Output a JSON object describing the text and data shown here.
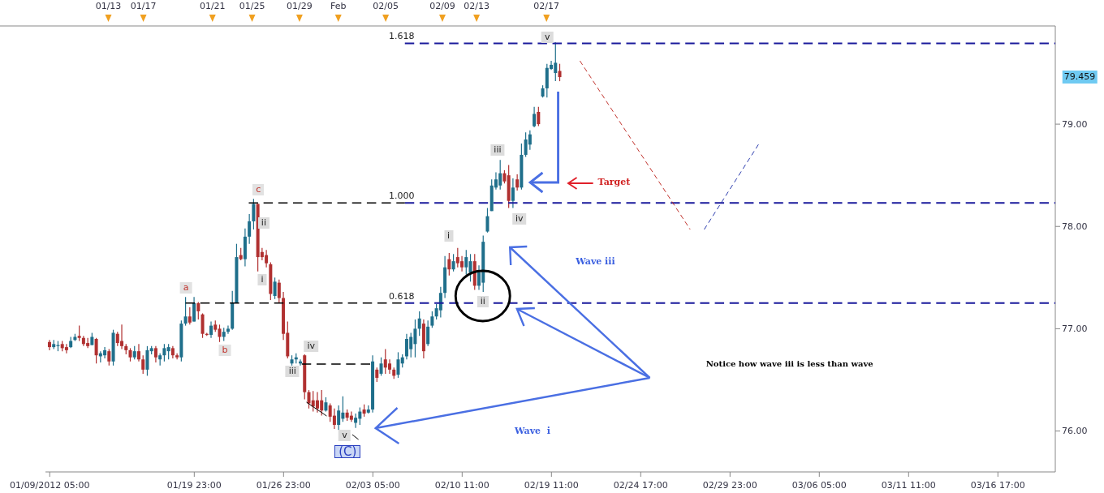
{
  "chart_data": {
    "type": "candlestick",
    "categories": [
      "01/09/2012 05:00",
      null,
      null,
      null,
      null,
      null,
      null,
      null,
      null,
      null,
      null,
      null,
      null,
      null,
      null,
      null,
      null,
      null,
      null,
      null,
      null,
      null,
      null,
      null,
      null,
      null,
      null,
      null,
      null,
      null,
      null,
      null,
      null,
      null,
      "01/19 23:00",
      null,
      null,
      null,
      null,
      null,
      null,
      null,
      null,
      null,
      null,
      null,
      null,
      null,
      null,
      null,
      null,
      null,
      null,
      null,
      null,
      "01/26 23:00",
      null,
      null,
      null,
      null,
      null,
      null,
      null,
      null,
      null,
      null,
      null,
      null,
      null,
      null,
      null,
      null,
      null,
      null,
      null,
      null,
      "02/03 05:00",
      null,
      null,
      null,
      null,
      null,
      null,
      null,
      null,
      null,
      null,
      null,
      null,
      null,
      null,
      null,
      null,
      null,
      null,
      null,
      null,
      "02/10 11:00",
      null,
      null,
      null,
      null,
      null,
      null,
      null,
      null,
      null,
      null,
      null,
      null,
      null,
      null,
      null,
      null,
      null,
      null,
      null,
      null,
      "02/19 11:00",
      null,
      null,
      null,
      null,
      null,
      null,
      null,
      null,
      null,
      null,
      null,
      null,
      null,
      null,
      null,
      null,
      null,
      null,
      null,
      null,
      "02/24 17:00",
      null,
      null,
      null,
      null,
      null,
      null,
      null,
      null,
      null,
      null,
      null,
      null,
      null,
      null,
      null,
      null,
      null,
      null,
      null,
      null,
      "02/29 23:00",
      null,
      null,
      null,
      null,
      null,
      null,
      null,
      null,
      null,
      null,
      null,
      null,
      null,
      null,
      null,
      null,
      null,
      null,
      null,
      null,
      "03/06 05:00",
      null,
      null,
      null,
      null,
      null,
      null,
      null,
      null,
      null,
      null,
      null,
      null,
      null,
      null,
      null,
      null,
      null,
      null,
      null,
      null,
      "03/11 11:00",
      null,
      null,
      null,
      null,
      null,
      null,
      null,
      null,
      null,
      null,
      null,
      null,
      null,
      null,
      null,
      null,
      null,
      null,
      null,
      null,
      "03/16 17:00",
      null,
      null,
      null,
      null,
      null,
      null,
      null,
      null,
      null,
      null,
      null,
      null,
      null
    ],
    "ohlc": [
      [
        76.87,
        76.89,
        76.79,
        76.82
      ],
      [
        76.82,
        76.89,
        76.8,
        76.85
      ],
      [
        76.83,
        76.88,
        76.78,
        76.84
      ],
      [
        76.85,
        76.88,
        76.78,
        76.81
      ],
      [
        76.82,
        76.85,
        76.76,
        76.79
      ],
      [
        76.82,
        76.92,
        76.81,
        76.88
      ],
      [
        76.89,
        76.95,
        76.88,
        76.92
      ],
      [
        76.93,
        77.03,
        76.88,
        76.91
      ],
      [
        76.91,
        76.93,
        76.83,
        76.85
      ],
      [
        76.86,
        76.91,
        76.81,
        76.83
      ],
      [
        76.84,
        76.96,
        76.84,
        76.92
      ],
      [
        76.9,
        76.91,
        76.66,
        76.74
      ],
      [
        76.73,
        76.78,
        76.67,
        76.76
      ],
      [
        76.74,
        76.82,
        76.71,
        76.79
      ],
      [
        76.78,
        76.8,
        76.64,
        76.68
      ],
      [
        76.68,
        76.99,
        76.64,
        76.96
      ],
      [
        76.95,
        76.97,
        76.83,
        76.86
      ],
      [
        76.88,
        77.04,
        76.8,
        76.83
      ],
      [
        76.83,
        76.85,
        76.75,
        76.79
      ],
      [
        76.79,
        76.81,
        76.68,
        76.72
      ],
      [
        76.72,
        76.83,
        76.7,
        76.78
      ],
      [
        76.78,
        76.85,
        76.68,
        76.7
      ],
      [
        76.7,
        76.74,
        76.56,
        76.6
      ],
      [
        76.6,
        76.83,
        76.54,
        76.79
      ],
      [
        76.78,
        76.83,
        76.75,
        76.81
      ],
      [
        76.81,
        76.83,
        76.67,
        76.72
      ],
      [
        76.7,
        76.76,
        76.64,
        76.74
      ],
      [
        76.74,
        76.85,
        76.68,
        76.81
      ],
      [
        76.78,
        76.85,
        76.7,
        76.82
      ],
      [
        76.81,
        76.83,
        76.71,
        76.74
      ],
      [
        76.74,
        76.76,
        76.7,
        76.72
      ],
      [
        76.72,
        77.08,
        76.68,
        77.05
      ],
      [
        77.05,
        77.31,
        77.03,
        77.12
      ],
      [
        77.12,
        77.21,
        77.04,
        77.06
      ],
      [
        77.07,
        77.31,
        77.07,
        77.25
      ],
      [
        77.25,
        77.26,
        77.09,
        77.17
      ],
      [
        77.14,
        77.15,
        76.91,
        76.95
      ],
      [
        76.95,
        76.96,
        76.93,
        76.94
      ],
      [
        76.94,
        77.07,
        76.91,
        77.03
      ],
      [
        77.04,
        77.08,
        76.97,
        76.99
      ],
      [
        77.0,
        77.04,
        76.87,
        76.92
      ],
      [
        76.92,
        77.01,
        76.88,
        76.97
      ],
      [
        76.97,
        77.03,
        76.95,
        77.0
      ],
      [
        77.0,
        77.37,
        76.99,
        77.25
      ],
      [
        77.25,
        77.83,
        77.25,
        77.7
      ],
      [
        77.72,
        77.79,
        77.67,
        77.68
      ],
      [
        77.68,
        77.98,
        77.61,
        77.9
      ],
      [
        77.9,
        78.12,
        77.83,
        78.05
      ],
      [
        78.05,
        78.27,
        77.97,
        78.22
      ],
      [
        78.22,
        78.22,
        77.56,
        77.7
      ],
      [
        77.75,
        77.79,
        77.67,
        77.7
      ],
      [
        77.72,
        77.77,
        77.6,
        77.64
      ],
      [
        77.63,
        77.65,
        77.28,
        77.34
      ],
      [
        77.32,
        77.5,
        77.29,
        77.46
      ],
      [
        77.45,
        77.48,
        77.25,
        77.3
      ],
      [
        77.3,
        77.36,
        76.89,
        76.95
      ],
      [
        76.96,
        77.07,
        76.71,
        76.73
      ],
      [
        76.66,
        76.74,
        76.64,
        76.7
      ],
      [
        76.7,
        76.76,
        76.66,
        76.72
      ],
      [
        76.66,
        76.7,
        76.64,
        76.68
      ],
      [
        76.74,
        76.75,
        76.31,
        76.38
      ],
      [
        76.38,
        76.4,
        76.22,
        76.27
      ],
      [
        76.3,
        76.39,
        76.19,
        76.24
      ],
      [
        76.3,
        76.38,
        76.18,
        76.22
      ],
      [
        76.3,
        76.4,
        76.15,
        76.2
      ],
      [
        76.2,
        76.33,
        76.19,
        76.28
      ],
      [
        76.25,
        76.27,
        76.09,
        76.14
      ],
      [
        76.15,
        76.22,
        76.02,
        76.06
      ],
      [
        76.06,
        76.25,
        76.01,
        76.2
      ],
      [
        76.12,
        76.34,
        76.09,
        76.18
      ],
      [
        76.18,
        76.21,
        76.1,
        76.13
      ],
      [
        76.15,
        76.19,
        76.09,
        76.11
      ],
      [
        76.08,
        76.17,
        76.03,
        76.13
      ],
      [
        76.12,
        76.23,
        76.06,
        76.19
      ],
      [
        76.21,
        76.26,
        76.14,
        76.17
      ],
      [
        76.18,
        76.25,
        76.17,
        76.21
      ],
      [
        76.21,
        76.74,
        76.18,
        76.68
      ],
      [
        76.6,
        76.62,
        76.48,
        76.52
      ],
      [
        76.56,
        76.72,
        76.54,
        76.66
      ],
      [
        76.7,
        76.8,
        76.56,
        76.62
      ],
      [
        76.66,
        76.7,
        76.56,
        76.6
      ],
      [
        76.6,
        76.62,
        76.51,
        76.54
      ],
      [
        76.55,
        76.77,
        76.52,
        76.7
      ],
      [
        76.66,
        76.75,
        76.62,
        76.72
      ],
      [
        76.73,
        76.95,
        76.7,
        76.9
      ],
      [
        76.8,
        76.96,
        76.72,
        76.92
      ],
      [
        76.85,
        77.09,
        76.72,
        77.0
      ],
      [
        77.0,
        77.17,
        76.93,
        77.1
      ],
      [
        77.05,
        77.09,
        76.71,
        76.78
      ],
      [
        76.85,
        77.08,
        76.83,
        77.02
      ],
      [
        77.03,
        77.17,
        77.01,
        77.12
      ],
      [
        77.12,
        77.24,
        77.09,
        77.2
      ],
      [
        77.18,
        77.41,
        77.11,
        77.35
      ],
      [
        77.35,
        77.71,
        77.3,
        77.6
      ],
      [
        77.68,
        77.74,
        77.52,
        77.58
      ],
      [
        77.58,
        77.73,
        77.56,
        77.66
      ],
      [
        77.7,
        77.79,
        77.6,
        77.64
      ],
      [
        77.66,
        77.71,
        77.56,
        77.6
      ],
      [
        77.6,
        77.77,
        77.53,
        77.7
      ],
      [
        77.55,
        77.73,
        77.46,
        77.66
      ],
      [
        77.66,
        77.73,
        77.38,
        77.42
      ],
      [
        77.42,
        77.62,
        77.38,
        77.55
      ],
      [
        77.45,
        77.91,
        77.36,
        77.85
      ],
      [
        77.95,
        78.18,
        77.94,
        78.1
      ],
      [
        78.15,
        78.46,
        78.15,
        78.4
      ],
      [
        78.38,
        78.53,
        78.36,
        78.46
      ],
      [
        78.4,
        78.65,
        78.36,
        78.52
      ],
      [
        78.52,
        78.55,
        78.42,
        78.44
      ],
      [
        78.5,
        78.6,
        78.18,
        78.25
      ],
      [
        78.25,
        78.47,
        78.18,
        78.38
      ],
      [
        78.46,
        78.51,
        78.35,
        78.38
      ],
      [
        78.38,
        78.81,
        78.36,
        78.7
      ],
      [
        78.7,
        78.92,
        78.68,
        78.85
      ],
      [
        78.8,
        78.94,
        78.75,
        78.9
      ],
      [
        78.98,
        79.17,
        78.97,
        79.1
      ],
      [
        79.12,
        79.17,
        78.98,
        79.0
      ],
      [
        79.27,
        79.38,
        79.26,
        79.35
      ],
      [
        79.35,
        79.59,
        79.26,
        79.55
      ],
      [
        79.54,
        79.62,
        79.53,
        79.58
      ],
      [
        79.5,
        79.8,
        79.42,
        79.6
      ],
      [
        79.52,
        79.59,
        79.42,
        79.46
      ],
      null,
      null,
      null,
      null,
      null,
      null,
      null,
      null,
      null,
      null,
      null,
      null,
      null,
      null,
      null,
      null,
      null,
      null,
      null,
      null,
      null,
      null,
      null,
      null,
      null,
      null,
      null,
      null,
      null,
      null,
      null,
      null,
      null,
      null,
      null,
      null,
      null,
      null,
      null,
      null,
      null,
      null,
      null,
      null,
      null,
      null,
      null,
      null,
      null,
      null,
      null,
      null,
      null,
      null,
      null,
      null,
      null,
      null,
      null,
      null,
      null,
      null,
      null,
      null,
      null,
      null,
      null,
      null,
      null,
      null,
      null,
      null,
      null,
      null,
      null,
      null,
      null,
      null,
      null,
      null,
      null,
      null,
      null,
      null,
      null,
      null,
      null,
      null,
      null,
      null,
      null,
      null,
      null,
      null,
      null,
      null,
      null,
      null,
      null,
      null,
      null,
      null,
      null,
      null,
      null,
      null,
      null,
      null,
      null,
      null,
      null,
      null,
      null,
      null,
      null,
      null
    ],
    "colors": [
      "#b03030",
      "#1f6f8b",
      "#1f6f8b",
      "#b03030",
      "#b03030",
      "#1f6f8b",
      "#1f6f8b",
      "#b03030",
      "#b03030",
      "#b03030",
      "#1f6f8b",
      "#b03030",
      "#1f6f8b",
      "#1f6f8b",
      "#b03030",
      "#1f6f8b",
      "#b03030",
      "#b03030",
      "#b03030",
      "#b03030",
      "#1f6f8b",
      "#b03030",
      "#b03030",
      "#1f6f8b",
      "#1f6f8b",
      "#b03030",
      "#1f6f8b",
      "#1f6f8b",
      "#1f6f8b",
      "#b03030",
      "#b03030",
      "#1f6f8b",
      "#1f6f8b",
      "#b03030",
      "#1f6f8b",
      "#b03030",
      "#b03030",
      "#b03030",
      "#1f6f8b",
      "#b03030",
      "#b03030",
      "#1f6f8b",
      "#1f6f8b",
      "#1f6f8b",
      "#1f6f8b",
      "#b03030",
      "#1f6f8b",
      "#1f6f8b",
      "#1f6f8b",
      "#b03030",
      "#b03030",
      "#b03030",
      "#b03030",
      "#1f6f8b",
      "#b03030",
      "#b03030",
      "#b03030",
      "#1f6f8b",
      "#1f6f8b",
      "#1f6f8b",
      "#b03030",
      "#b03030",
      "#b03030",
      "#b03030",
      "#b03030",
      "#1f6f8b",
      "#b03030",
      "#b03030",
      "#1f6f8b",
      "#1f6f8b",
      "#b03030",
      "#b03030",
      "#1f6f8b",
      "#1f6f8b",
      "#b03030",
      "#1f6f8b",
      "#1f6f8b",
      "#b03030",
      "#1f6f8b",
      "#b03030",
      "#b03030",
      "#b03030",
      "#1f6f8b",
      "#1f6f8b",
      "#1f6f8b",
      "#1f6f8b",
      "#1f6f8b",
      "#1f6f8b",
      "#b03030",
      "#1f6f8b",
      "#1f6f8b",
      "#1f6f8b",
      "#1f6f8b",
      "#1f6f8b",
      "#b03030",
      "#1f6f8b",
      "#b03030",
      "#b03030",
      "#1f6f8b",
      "#1f6f8b",
      "#b03030",
      "#1f6f8b",
      "#1f6f8b",
      "#1f6f8b",
      "#1f6f8b",
      "#1f6f8b",
      "#1f6f8b",
      "#b03030",
      "#b03030",
      "#1f6f8b",
      "#b03030",
      "#1f6f8b",
      "#1f6f8b",
      "#1f6f8b",
      "#1f6f8b",
      "#b03030",
      "#1f6f8b",
      "#1f6f8b",
      "#1f6f8b",
      "#1f6f8b",
      "#b03030",
      null,
      null,
      null,
      null,
      null,
      null,
      null,
      null,
      null,
      null,
      null,
      null,
      null,
      null,
      null,
      null,
      null,
      null,
      null,
      null,
      null,
      null,
      null,
      null,
      null,
      null,
      null,
      null,
      null,
      null,
      null,
      null,
      null,
      null,
      null,
      null,
      null,
      null,
      null,
      null,
      null,
      null,
      null,
      null,
      null,
      null,
      null,
      null,
      null,
      null,
      null,
      null,
      null,
      null,
      null,
      null,
      null,
      null,
      null,
      null,
      null,
      null,
      null,
      null,
      null,
      null,
      null,
      null,
      null,
      null,
      null,
      null,
      null,
      null,
      null,
      null,
      null,
      null,
      null,
      null,
      null,
      null,
      null,
      null,
      null,
      null,
      null,
      null,
      null,
      null,
      null,
      null,
      null,
      null,
      null,
      null,
      null,
      null,
      null,
      null,
      null,
      null,
      null,
      null,
      null,
      null,
      null,
      null,
      null,
      null,
      null,
      null,
      null,
      null,
      null,
      null
    ],
    "ylim": [
      75.6,
      79.96
    ],
    "yticks": [
      {
        "value": 76,
        "label": "76.00"
      },
      {
        "value": 77,
        "label": "77.00"
      },
      {
        "value": 78,
        "label": "78.00"
      },
      {
        "value": 79,
        "label": "79.00"
      }
    ],
    "ref_lines": [
      {
        "axis": "y",
        "value": 79.79,
        "color": "#1a1a9c",
        "line_style": "dashed"
      },
      {
        "axis": "y",
        "value": 78.23,
        "color": "#1a1a9c",
        "line_style": "dashed"
      },
      {
        "axis": "y",
        "value": 77.25,
        "color": "#1a1a9c",
        "line_style": "dashed"
      },
      {
        "axis": "y",
        "value": 78.23,
        "color": "#000000",
        "line_style": "dashed"
      },
      {
        "axis": "y",
        "value": 77.25,
        "color": "#000000",
        "line_style": "dashed"
      }
    ],
    "annotations": [
      "a",
      {
        "text": "b",
        "y": 76.91
      },
      "c",
      {
        "text": "ii",
        "y": 78.22
      },
      "i",
      "iv",
      {
        "text": "iii",
        "y": 76.64
      },
      "v",
      "(C)",
      {
        "text": "i",
        "y": 77.74
      },
      {
        "text": "ii",
        "y": 77.36
      },
      {
        "text": "iii",
        "y": 78.65
      },
      "iv",
      {
        "text": "v",
        "y": 79.8
      },
      "Target",
      "Wave iii",
      "Notice how wave iii is less than wave",
      "Wave  i",
      "79.459",
      "01/13",
      "01/17",
      "01/21",
      "01/25",
      "01/29",
      "Feb",
      "02/05",
      "02/09",
      "02/13",
      "02/17",
      {
        "text": "1.618",
        "y": 79.79
      },
      {
        "text": "1.000",
        "y": 78.23
      },
      {
        "text": "0.618",
        "y": 77.25
      }
    ]
  }
}
